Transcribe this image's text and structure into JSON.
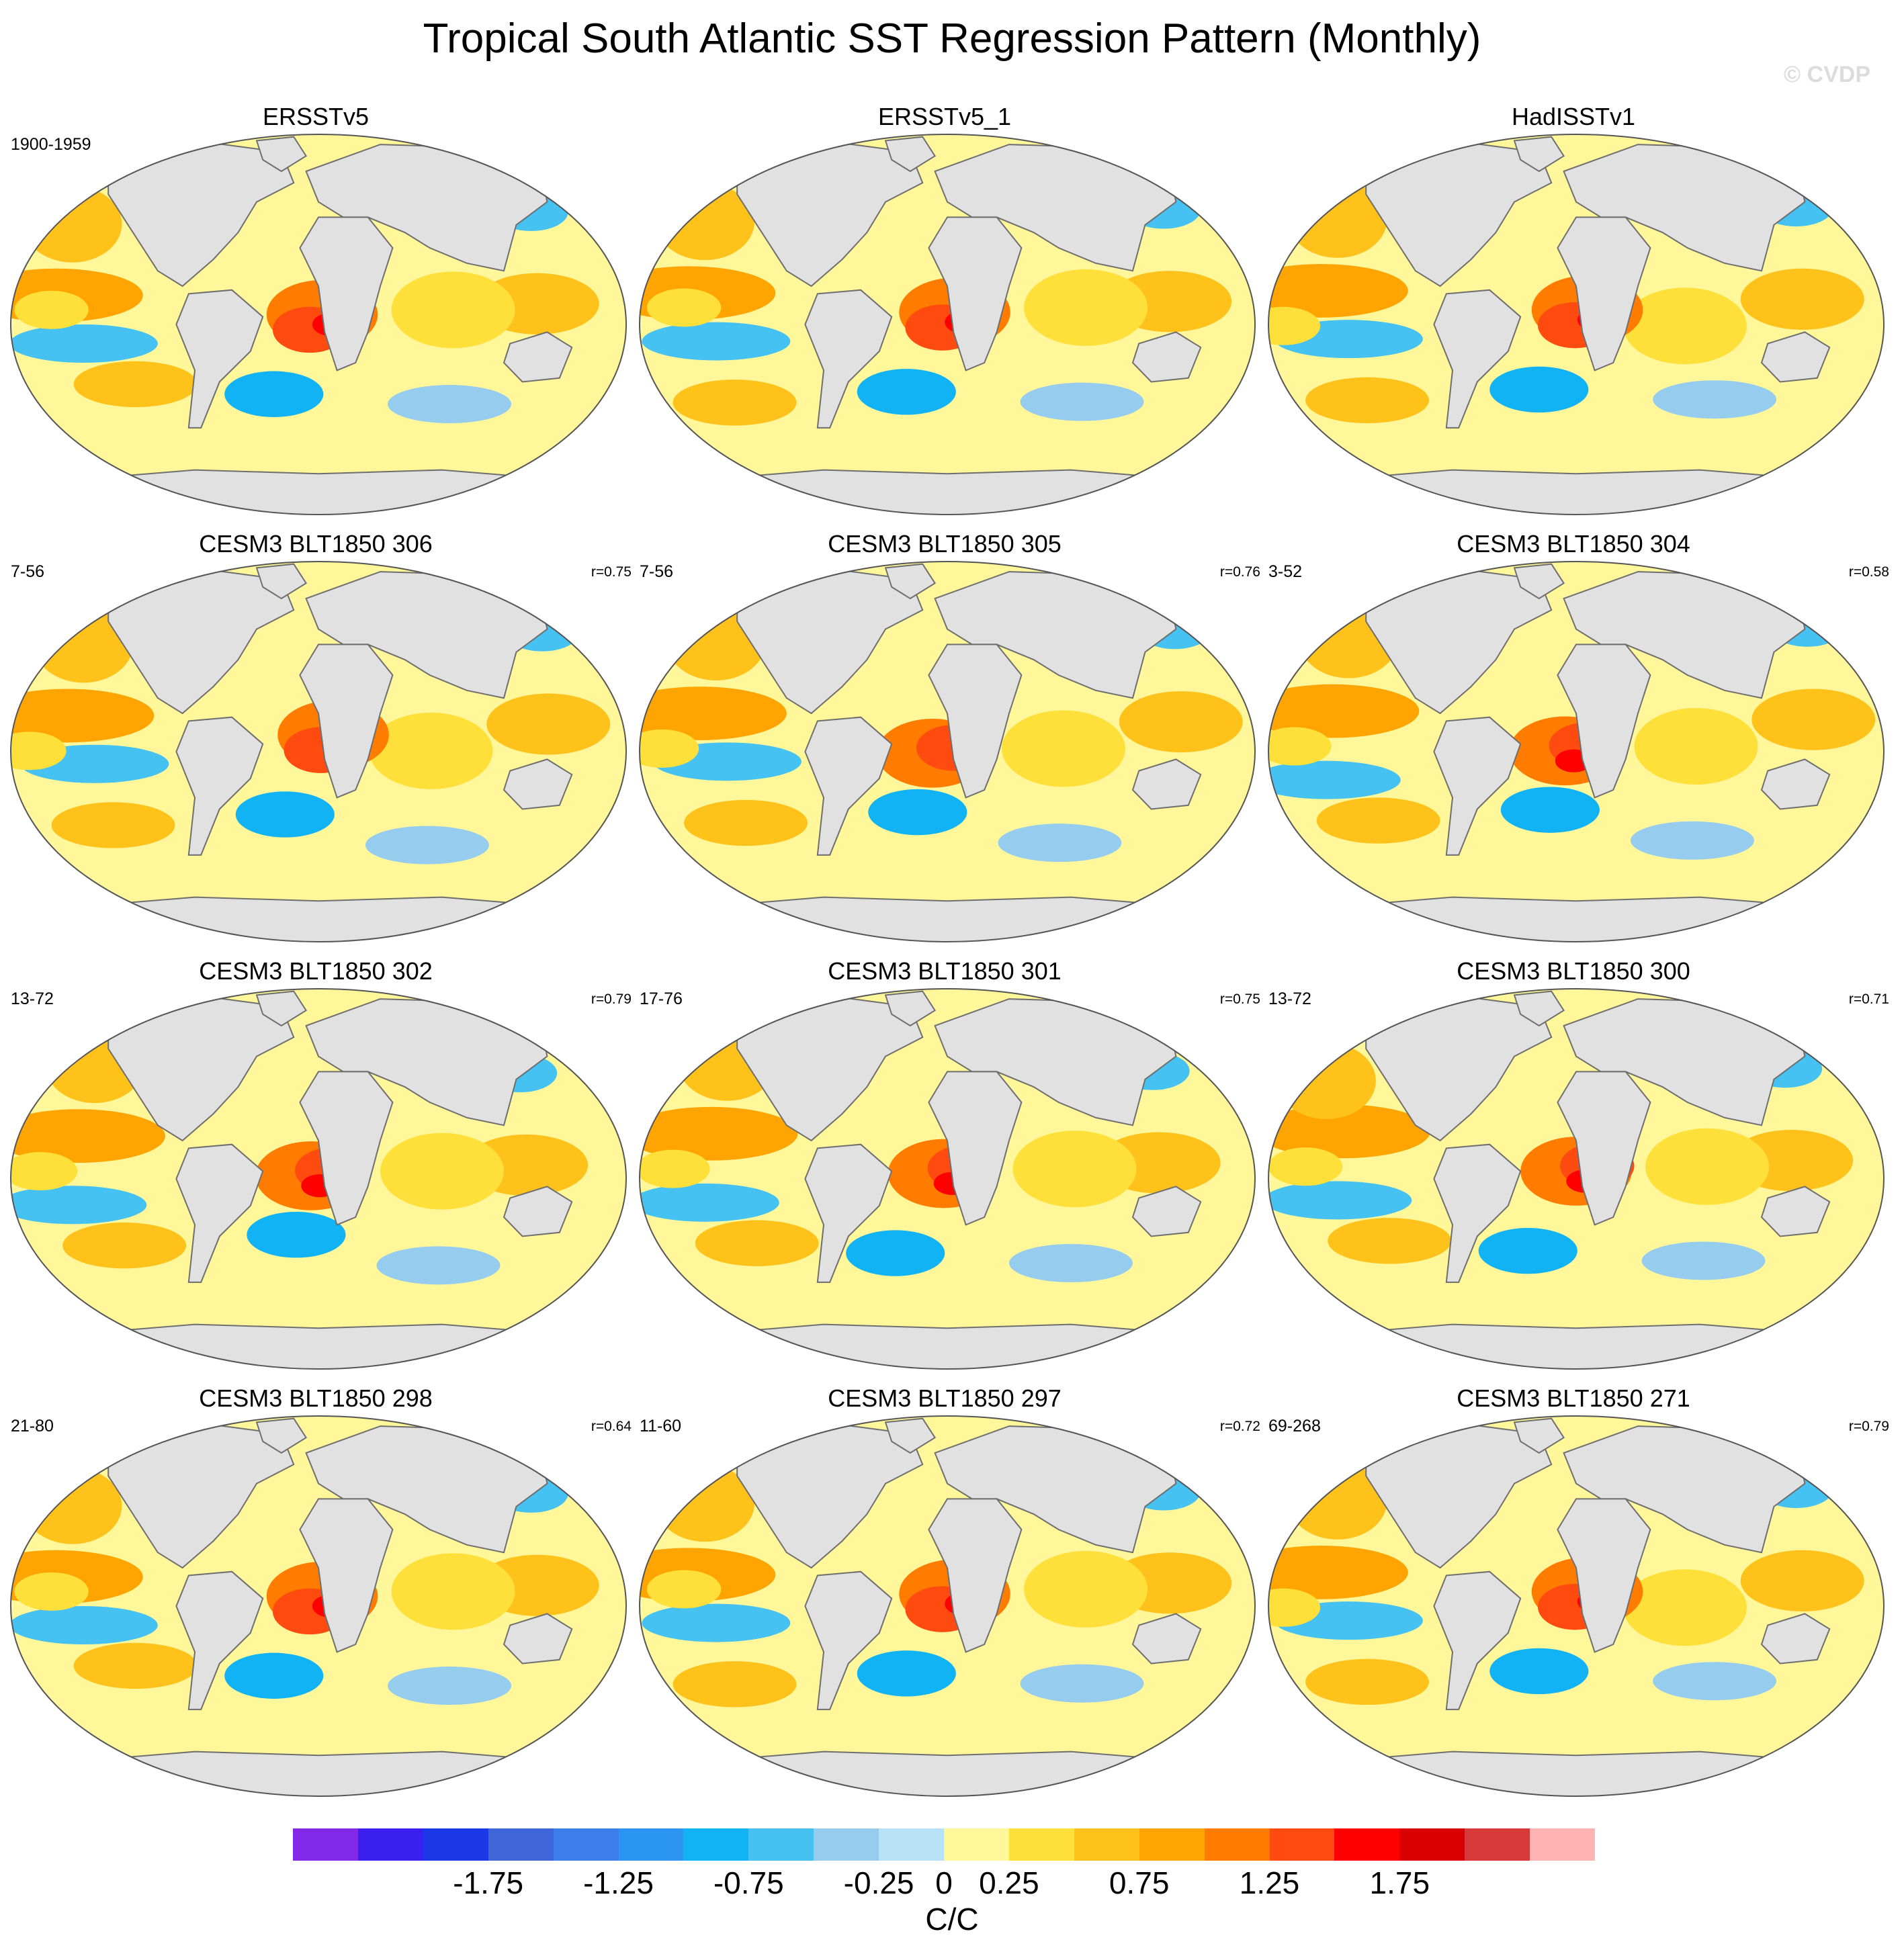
{
  "title": "Tropical South Atlantic SST Regression Pattern (Monthly)",
  "watermark": "© CVDP",
  "panels": [
    {
      "title": "ERSSTv5",
      "years": "1900-1959",
      "r": ""
    },
    {
      "title": "ERSSTv5_1",
      "years": "",
      "r": ""
    },
    {
      "title": "HadISSTv1",
      "years": "",
      "r": ""
    },
    {
      "title": "CESM3 BLT1850 306",
      "years": "7-56",
      "r": "r=0.75"
    },
    {
      "title": "CESM3 BLT1850 305",
      "years": "7-56",
      "r": "r=0.76"
    },
    {
      "title": "CESM3 BLT1850 304",
      "years": "3-52",
      "r": "r=0.58"
    },
    {
      "title": "CESM3 BLT1850 302",
      "years": "13-72",
      "r": "r=0.79"
    },
    {
      "title": "CESM3 BLT1850 301",
      "years": "17-76",
      "r": "r=0.75"
    },
    {
      "title": "CESM3 BLT1850 300",
      "years": "13-72",
      "r": "r=0.71"
    },
    {
      "title": "CESM3 BLT1850 298",
      "years": "21-80",
      "r": "r=0.64"
    },
    {
      "title": "CESM3 BLT1850 297",
      "years": "11-60",
      "r": "r=0.72"
    },
    {
      "title": "CESM3 BLT1850 271",
      "years": "69-268",
      "r": "r=0.79"
    }
  ],
  "colorbar": {
    "units": "C/C",
    "levels": [
      -2.0,
      -1.75,
      -1.5,
      -1.25,
      -1.0,
      -0.75,
      -0.5,
      -0.25,
      0,
      0.25,
      0.5,
      0.75,
      1.0,
      1.25,
      1.5,
      1.75,
      2.0
    ],
    "labels": [
      "-1.75",
      "-1.25",
      "-0.75",
      "-0.25",
      "0",
      "0.25",
      "0.75",
      "1.25",
      "1.75"
    ],
    "label_values": [
      -1.75,
      -1.25,
      -0.75,
      -0.25,
      0,
      0.25,
      0.75,
      1.25,
      1.75
    ],
    "colors": [
      "#8228e8",
      "#3a1fee",
      "#1b38e6",
      "#3f66d8",
      "#3c7fea",
      "#2a96f2",
      "#12b3f5",
      "#45c2f2",
      "#96cdee",
      "#b8e2f6",
      "#fff79a",
      "#ffe03a",
      "#ffc21a",
      "#ffa400",
      "#ff7c00",
      "#ff4a10",
      "#ff0000",
      "#d80000",
      "#d83a3a",
      "#ffb4b4"
    ]
  },
  "map_colors": {
    "land": "#e1e1e1",
    "coast": "#6e6e6e",
    "ocean_base": "#fff79a"
  }
}
